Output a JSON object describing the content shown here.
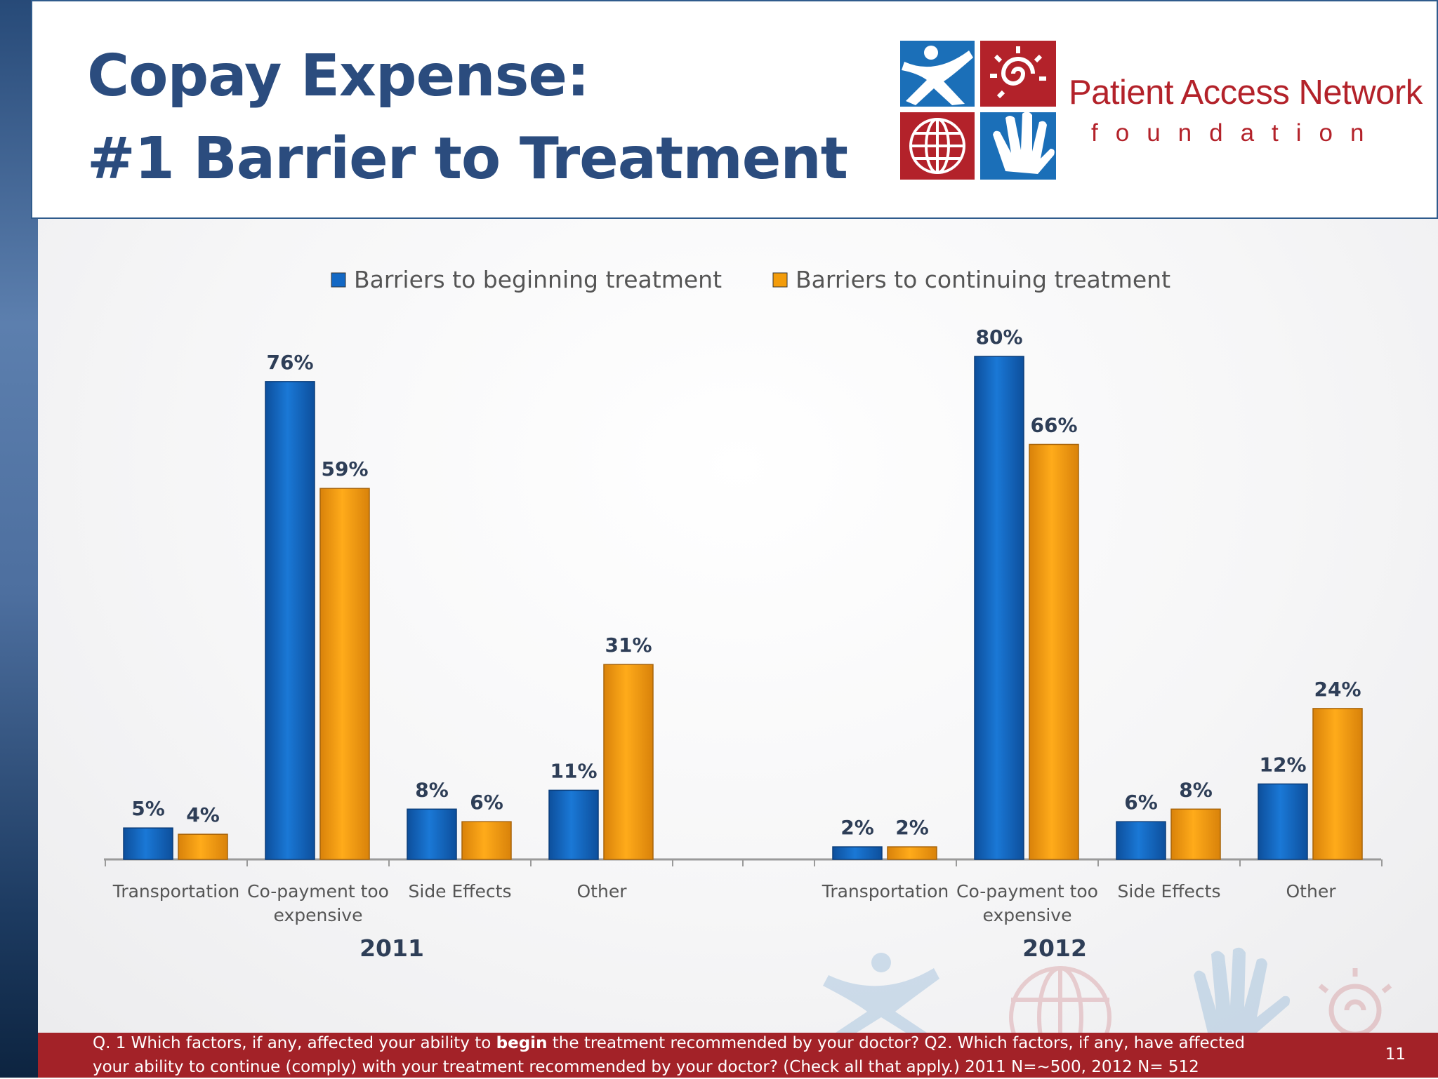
{
  "slide": {
    "title_line1": "Copay Expense:",
    "title_line2": "#1 Barrier to Treatment",
    "logo": {
      "name": "Patient Access Network",
      "sub": "foundation",
      "colors": {
        "blue": "#1b6fb8",
        "red": "#b3222a"
      },
      "icons": [
        "person-icon",
        "sun-icon",
        "globe-icon",
        "hand-icon"
      ]
    },
    "footer": {
      "line1_part1": "Q. 1  Which factors, if any, affected your ability to ",
      "line1_bold": "begin",
      "line1_part2": " the treatment recommended by your doctor?  Q2. Which factors, if any, have affected",
      "line2": "your ability to continue (comply) with your treatment recommended by your doctor?   (Check all that apply.)  2011 N=~500, 2012 N= 512"
    },
    "page_number": "11"
  },
  "chart_data": {
    "type": "bar",
    "title": "",
    "xlabel": "",
    "ylabel": "",
    "ylim": [
      0,
      85
    ],
    "grid": false,
    "legend_position": "top",
    "colors": {
      "Barriers to beginning treatment": "#1368c4",
      "Barriers to continuing treatment": "#f39c0b"
    },
    "groups": [
      {
        "label": "2011",
        "categories": [
          "Transportation",
          "Co-payment too expensive",
          "Side Effects",
          "Other"
        ],
        "series": [
          {
            "name": "Barriers to beginning treatment",
            "values": [
              5,
              76,
              8,
              11
            ],
            "labels": [
              "5%",
              "76%",
              "8%",
              "11%"
            ]
          },
          {
            "name": "Barriers to continuing treatment",
            "values": [
              4,
              59,
              6,
              31
            ],
            "labels": [
              "4%",
              "59%",
              "6%",
              "31%"
            ]
          }
        ]
      },
      {
        "label": "2012",
        "categories": [
          "Transportation",
          "Co-payment too expensive",
          "Side Effects",
          "Other"
        ],
        "series": [
          {
            "name": "Barriers to beginning treatment",
            "values": [
              2,
              80,
              6,
              12
            ],
            "labels": [
              "2%",
              "80%",
              "6%",
              "12%"
            ]
          },
          {
            "name": "Barriers to continuing treatment",
            "values": [
              2,
              66,
              8,
              24
            ],
            "labels": [
              "2%",
              "66%",
              "8%",
              "24%"
            ]
          }
        ]
      }
    ]
  }
}
